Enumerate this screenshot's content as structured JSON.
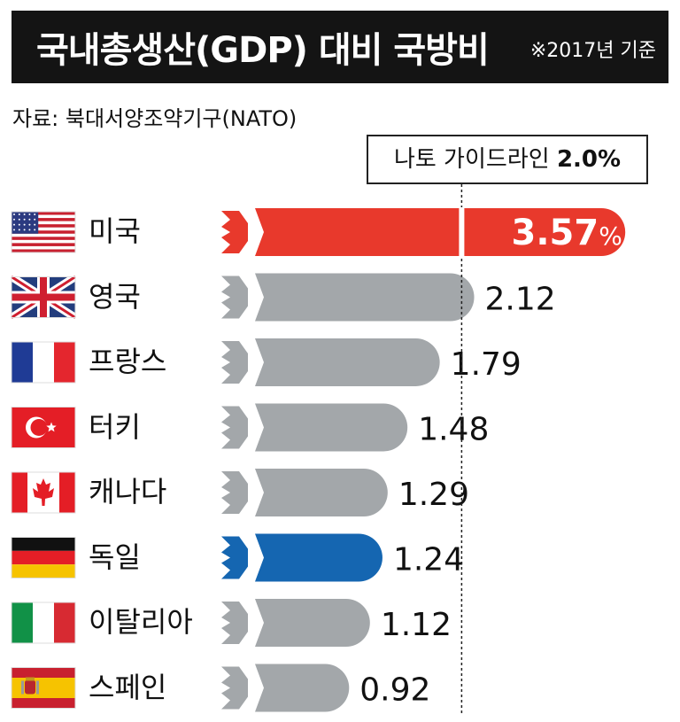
{
  "header": {
    "title": "국내총생산(GDP) 대비 국방비",
    "note": "※2017년 기준",
    "source": "자료: 북대서양조약기구(NATO)"
  },
  "guideline": {
    "label": "나토 가이드라인",
    "value_label": "2.0%"
  },
  "colors": {
    "default": "#a3a7aa",
    "us": "#e8392c",
    "germany": "#1566b1",
    "title_bg": "#141414"
  },
  "chart_data": {
    "type": "bar",
    "orientation": "horizontal",
    "categories": [
      "미국",
      "영국",
      "프랑스",
      "터키",
      "캐나다",
      "독일",
      "이탈리아",
      "스페인"
    ],
    "values": [
      3.57,
      2.12,
      1.79,
      1.48,
      1.29,
      1.24,
      1.12,
      0.92
    ],
    "value_labels": [
      "3.57",
      "2.12",
      "1.79",
      "1.48",
      "1.29",
      "1.24",
      "1.12",
      "0.92"
    ],
    "first_value_suffix": "%",
    "highlight": {
      "미국": "us",
      "독일": "germany"
    },
    "reference_line": 2.0,
    "flags": [
      "us-flag-icon",
      "uk-flag-icon",
      "france-flag-icon",
      "turkey-flag-icon",
      "canada-flag-icon",
      "germany-flag-icon",
      "italy-flag-icon",
      "spain-flag-icon"
    ]
  }
}
